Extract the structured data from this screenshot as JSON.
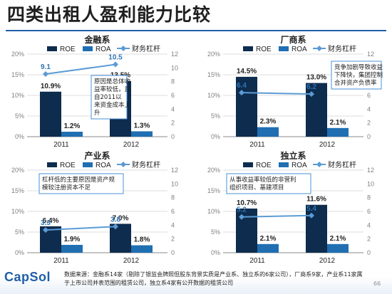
{
  "slide": {
    "title": "四类出租人盈利能力比较",
    "logo": "CapSol",
    "source": "数据来源：金融系14家（剔除了银监会牌照但股东背景实质是产业系、独立系的6家公司），厂商系9家，产业系11家属于上市公司并表范围的租赁公司，独立系4家有公开数据的租赁公司",
    "page_number": "66",
    "colors": {
      "roe": "#0d2c4e",
      "roa": "#1f6fb2",
      "leverage": "#5b9bd5",
      "callout_border": "#4a90d9",
      "title_rule": "#1f5fa8"
    }
  },
  "chart_data": [
    {
      "type": "bar",
      "title": "金融系",
      "categories": [
        "2011",
        "2012"
      ],
      "series": [
        {
          "name": "ROE",
          "type": "bar",
          "axis": "left",
          "values": [
            10.9,
            13.5
          ],
          "labels": [
            "10.9%",
            "13.5%"
          ]
        },
        {
          "name": "ROA",
          "type": "bar",
          "axis": "left",
          "values": [
            1.2,
            1.3
          ],
          "labels": [
            "1.2%",
            "1.3%"
          ]
        },
        {
          "name": "财务杠杆",
          "type": "line",
          "axis": "right",
          "values": [
            9.1,
            10.5
          ],
          "labels": [
            "9.1",
            "10.5"
          ]
        }
      ],
      "yticks": [
        "0%",
        "5%",
        "10%",
        "15%",
        "20%"
      ],
      "y2ticks": [
        "0",
        "2",
        "4",
        "6",
        "8",
        "10",
        "12"
      ],
      "ylim": [
        0,
        20
      ],
      "y2lim": [
        0,
        12
      ],
      "legend": "top",
      "annotation": "原因是总体收益率较低，且自2011以来资金成本上升"
    },
    {
      "type": "bar",
      "title": "厂商系",
      "categories": [
        "2011",
        "2012"
      ],
      "series": [
        {
          "name": "ROE",
          "type": "bar",
          "axis": "left",
          "values": [
            14.5,
            13.0
          ],
          "labels": [
            "14.5%",
            "13.0%"
          ]
        },
        {
          "name": "ROA",
          "type": "bar",
          "axis": "left",
          "values": [
            2.3,
            2.1
          ],
          "labels": [
            "2.3%",
            "2.1%"
          ]
        },
        {
          "name": "财务杠杆",
          "type": "line",
          "axis": "right",
          "values": [
            6.4,
            6.2
          ],
          "labels": [
            "6.4",
            "6.2"
          ]
        }
      ],
      "yticks": [
        "0%",
        "5%",
        "10%",
        "15%",
        "20%"
      ],
      "y2ticks": [
        "0",
        "2",
        "4",
        "6",
        "8",
        "10",
        "12"
      ],
      "ylim": [
        0,
        20
      ],
      "y2lim": [
        0,
        12
      ],
      "legend": "top",
      "annotation": "竞争加剧导致收益下降快，集团控制合并资产负债率"
    },
    {
      "type": "bar",
      "title": "产业系",
      "categories": [
        "2011",
        "2012"
      ],
      "series": [
        {
          "name": "ROE",
          "type": "bar",
          "axis": "left",
          "values": [
            6.4,
            7.0
          ],
          "labels": [
            "6.4%",
            "7.0%"
          ]
        },
        {
          "name": "ROA",
          "type": "bar",
          "axis": "left",
          "values": [
            1.9,
            1.8
          ],
          "labels": [
            "1.9%",
            "1.8%"
          ]
        },
        {
          "name": "财务杠杆",
          "type": "line",
          "axis": "right",
          "values": [
            3.3,
            3.8
          ],
          "labels": [
            "3.3",
            "3.8"
          ]
        }
      ],
      "yticks": [
        "0%",
        "5%",
        "10%",
        "15%",
        "20%"
      ],
      "y2ticks": [
        "0",
        "2",
        "4",
        "6",
        "8",
        "10",
        "12"
      ],
      "ylim": [
        0,
        20
      ],
      "y2lim": [
        0,
        12
      ],
      "legend": "top",
      "annotation": "杠杆低的主要原因是资产规模较注册资本不足"
    },
    {
      "type": "bar",
      "title": "独立系",
      "categories": [
        "2011",
        "2012"
      ],
      "series": [
        {
          "name": "ROE",
          "type": "bar",
          "axis": "left",
          "values": [
            10.7,
            11.6
          ],
          "labels": [
            "10.7%",
            "11.6%"
          ]
        },
        {
          "name": "ROA",
          "type": "bar",
          "axis": "left",
          "values": [
            2.1,
            2.1
          ],
          "labels": [
            "2.1%",
            "2.1%"
          ]
        },
        {
          "name": "财务杠杆",
          "type": "line",
          "axis": "right",
          "values": [
            5.2,
            5.4
          ],
          "labels": [
            "5.2",
            "5.4"
          ]
        }
      ],
      "yticks": [
        "0%",
        "5%",
        "10%",
        "15%",
        "20%"
      ],
      "y2ticks": [
        "0",
        "2",
        "4",
        "6",
        "8",
        "10",
        "12"
      ],
      "ylim": [
        0,
        20
      ],
      "y2lim": [
        0,
        12
      ],
      "legend": "top",
      "annotation": "从事收益率较低的非营利组织项目、基建项目"
    }
  ]
}
